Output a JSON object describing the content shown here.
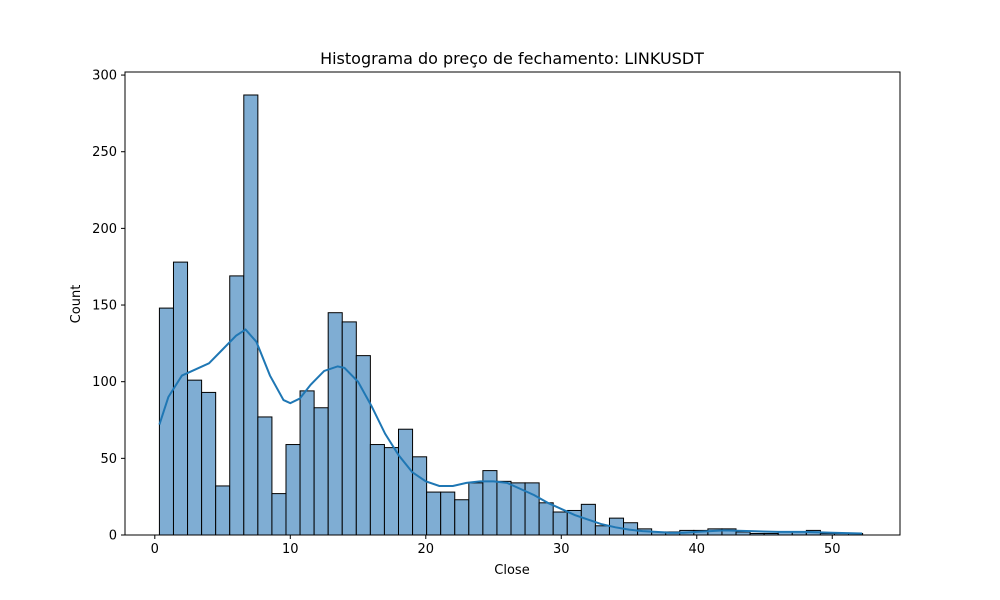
{
  "chart_data": {
    "type": "bar",
    "subtype": "histogram-with-kde",
    "title": "Histograma do preço de fechamento: LINKUSDT",
    "xlabel": "Close",
    "ylabel": "Count",
    "xlim": [
      -2.2,
      55.0
    ],
    "ylim": [
      0,
      302
    ],
    "xticks": [
      0,
      10,
      20,
      30,
      40,
      50
    ],
    "yticks": [
      0,
      50,
      100,
      150,
      200,
      250,
      300
    ],
    "grid": false,
    "legend": "none",
    "bar_color": "#7fadd3",
    "edge_color": "#000000",
    "kde_color": "#1f77b4",
    "bin_start": 0.34,
    "bin_width": 1.038,
    "counts": [
      148,
      178,
      101,
      93,
      32,
      169,
      287,
      77,
      27,
      59,
      94,
      83,
      145,
      139,
      117,
      59,
      57,
      69,
      51,
      28,
      28,
      23,
      34,
      42,
      35,
      34,
      34,
      21,
      15,
      16,
      20,
      6,
      11,
      8,
      4,
      2,
      2,
      3,
      3,
      4,
      4,
      2,
      1,
      1,
      2,
      2,
      3,
      1,
      1,
      1
    ],
    "kde": {
      "x": [
        0.34,
        1,
        2,
        3,
        4,
        5,
        6,
        6.7,
        7.5,
        8.5,
        9.5,
        10,
        10.7,
        11.5,
        12.5,
        13.5,
        14,
        15,
        16,
        17,
        18,
        19,
        20,
        21,
        22,
        23,
        24,
        25,
        26,
        27,
        28,
        29,
        30,
        31,
        32,
        33,
        34,
        35,
        36,
        37,
        38,
        39,
        40,
        42,
        44,
        46,
        48,
        50,
        52.2
      ],
      "y": [
        72,
        90,
        104,
        108,
        112,
        121,
        130,
        134,
        126,
        104,
        88,
        86,
        89,
        98,
        107,
        110,
        109,
        100,
        84,
        66,
        52,
        41,
        35,
        32,
        32,
        34,
        35,
        35,
        34,
        30,
        26,
        21,
        17,
        13,
        10,
        7,
        5,
        3.5,
        2.5,
        2,
        1.5,
        1.5,
        2,
        3,
        2.5,
        2,
        2,
        1.5,
        1
      ]
    }
  }
}
